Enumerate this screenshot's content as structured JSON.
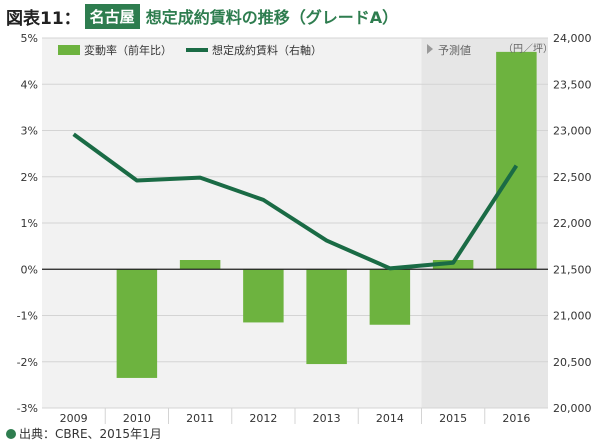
{
  "header": {
    "figure_label": "図表11：",
    "city": "名古屋",
    "title": "想定成約賃料の推移（グレードA）"
  },
  "chart_data": {
    "type": "bar+line",
    "categories": [
      "2009",
      "2010",
      "2011",
      "2012",
      "2013",
      "2014",
      "2015",
      "2016"
    ],
    "series": [
      {
        "name": "変動率（前年比）",
        "type": "bar",
        "axis": "left",
        "color": "#6db33f",
        "values": [
          null,
          -2.35,
          0.2,
          -1.15,
          -2.05,
          -1.2,
          0.2,
          4.7
        ]
      },
      {
        "name": "想定成約賃料（右軸）",
        "type": "line",
        "axis": "right",
        "color": "#1a6b45",
        "values": [
          22960,
          22460,
          22490,
          22250,
          21810,
          21510,
          21570,
          22620
        ]
      }
    ],
    "y_left": {
      "min": -3,
      "max": 5,
      "ticks": [
        "5%",
        "4%",
        "3%",
        "2%",
        "1%",
        "0%",
        "-1%",
        "-2%",
        "-3%"
      ]
    },
    "y_right": {
      "min": 20000,
      "max": 24000,
      "ticks": [
        "24,000",
        "23,500",
        "23,000",
        "22,500",
        "22,000",
        "21,500",
        "21,000",
        "20,500",
        "20,000"
      ]
    },
    "forecast_label": "予測値",
    "forecast_start_index": 6,
    "right_unit": "（円／坪）",
    "legend_position": "top-left"
  },
  "footer": {
    "source": "出典：CBRE、2015年1月"
  }
}
